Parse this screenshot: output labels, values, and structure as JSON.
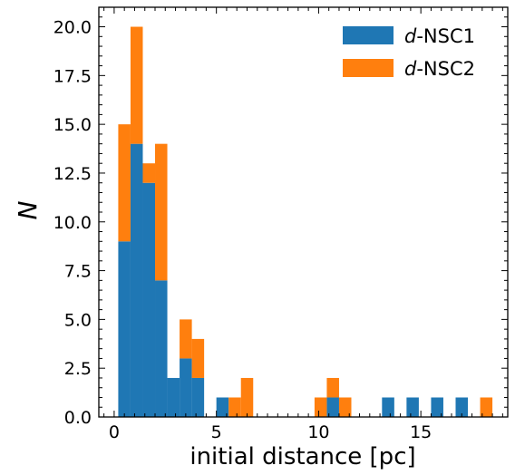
{
  "chart_data": {
    "type": "bar",
    "subtype": "stacked-histogram",
    "xlabel": "initial distance [pc]",
    "ylabel": "N",
    "xlim": [
      -0.75,
      19.25
    ],
    "ylim": [
      0,
      21
    ],
    "xticks": [
      0,
      5,
      10,
      15
    ],
    "xtick_labels": [
      "0",
      "5",
      "10",
      "15"
    ],
    "yticks": [
      0,
      2.5,
      5,
      7.5,
      10,
      12.5,
      15,
      17.5,
      20
    ],
    "ytick_labels": [
      "0.0",
      "2.5",
      "5.0",
      "7.5",
      "10.0",
      "12.5",
      "15.0",
      "17.5",
      "20.0"
    ],
    "bin_width": 0.6,
    "bin_starts": [
      0.2,
      0.8,
      1.4,
      2.0,
      2.6,
      3.2,
      3.8,
      5.0,
      5.6,
      6.2,
      9.8,
      10.4,
      11.0,
      13.1,
      14.3,
      15.5,
      16.7,
      17.9
    ],
    "series": [
      {
        "name": "d-NSC1",
        "color": "#1f77b4",
        "values": [
          9,
          14,
          12,
          7,
          2,
          3,
          2,
          1,
          0,
          0,
          0,
          1,
          0,
          1,
          1,
          1,
          1,
          0
        ]
      },
      {
        "name": "d-NSC2",
        "color": "#ff7f0e",
        "values": [
          6,
          6,
          1,
          7,
          0,
          2,
          2,
          0,
          1,
          2,
          1,
          1,
          1,
          0,
          0,
          0,
          0,
          1
        ]
      }
    ],
    "legend": {
      "position": "top-right",
      "items": [
        {
          "prefix": "d",
          "suffix": "-NSC1",
          "color": "#1f77b4"
        },
        {
          "prefix": "d",
          "suffix": "-NSC2",
          "color": "#ff7f0e"
        }
      ]
    },
    "grid": false
  }
}
